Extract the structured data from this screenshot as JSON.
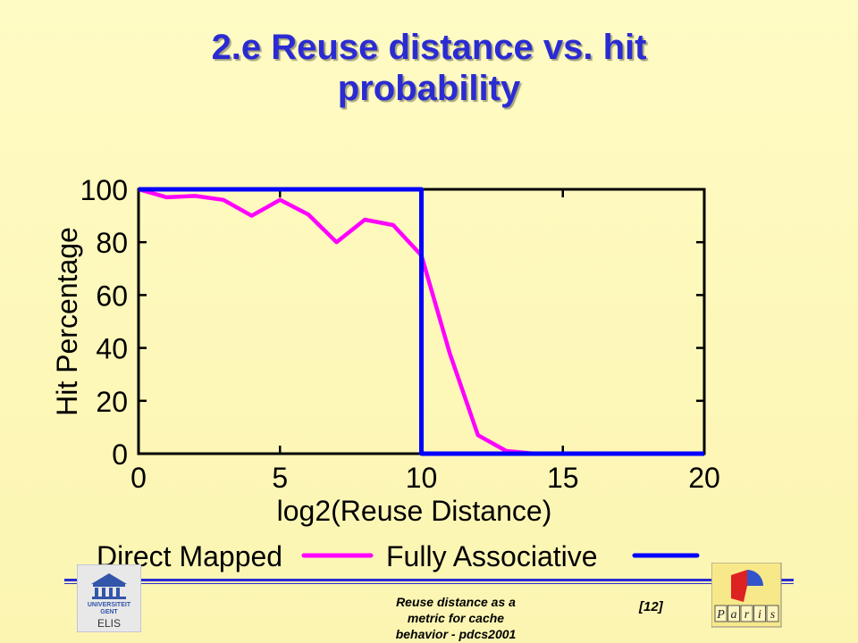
{
  "slide": {
    "title_line1": "2.e Reuse distance vs. hit",
    "title_line2": "probability",
    "footer_text_line1": "Reuse distance as a",
    "footer_text_line2": "metric for cache",
    "footer_text_line3": "behavior - pdcs2001",
    "slide_number": "[12]"
  },
  "logos": {
    "left": {
      "line1": "UNIVERSITEIT",
      "line2": "GENT",
      "line3": "ELIS",
      "icon": "university-building-icon"
    },
    "right": {
      "letters": [
        "P",
        "a",
        "r",
        "i",
        "s"
      ],
      "icon": "paris-logo-icon"
    }
  },
  "chart_data": {
    "type": "line",
    "title": "",
    "xlabel": "log2(Reuse Distance)",
    "ylabel": "Hit Percentage",
    "xlim": [
      0,
      20
    ],
    "ylim": [
      0,
      100
    ],
    "x_ticks": [
      0,
      5,
      10,
      15,
      20
    ],
    "y_ticks": [
      0,
      20,
      40,
      60,
      80,
      100
    ],
    "legend_position": "bottom",
    "series": [
      {
        "name": "Direct Mapped",
        "color": "#ff00ff",
        "points": [
          [
            0,
            100
          ],
          [
            1,
            97
          ],
          [
            2,
            97.5
          ],
          [
            3,
            96
          ],
          [
            4,
            90
          ],
          [
            5,
            96
          ],
          [
            6,
            90.5
          ],
          [
            7,
            80
          ],
          [
            8,
            88.5
          ],
          [
            9,
            86.5
          ],
          [
            10,
            75
          ],
          [
            11,
            38
          ],
          [
            12,
            7
          ],
          [
            13,
            1
          ],
          [
            14,
            0
          ],
          [
            15,
            0
          ],
          [
            16,
            0
          ],
          [
            17,
            0
          ],
          [
            18,
            0
          ],
          [
            19,
            0
          ],
          [
            20,
            0
          ]
        ]
      },
      {
        "name": "Fully Associative",
        "color": "#0000ff",
        "points": [
          [
            0,
            100
          ],
          [
            10,
            100
          ],
          [
            10,
            0
          ],
          [
            20,
            0
          ]
        ]
      }
    ]
  }
}
